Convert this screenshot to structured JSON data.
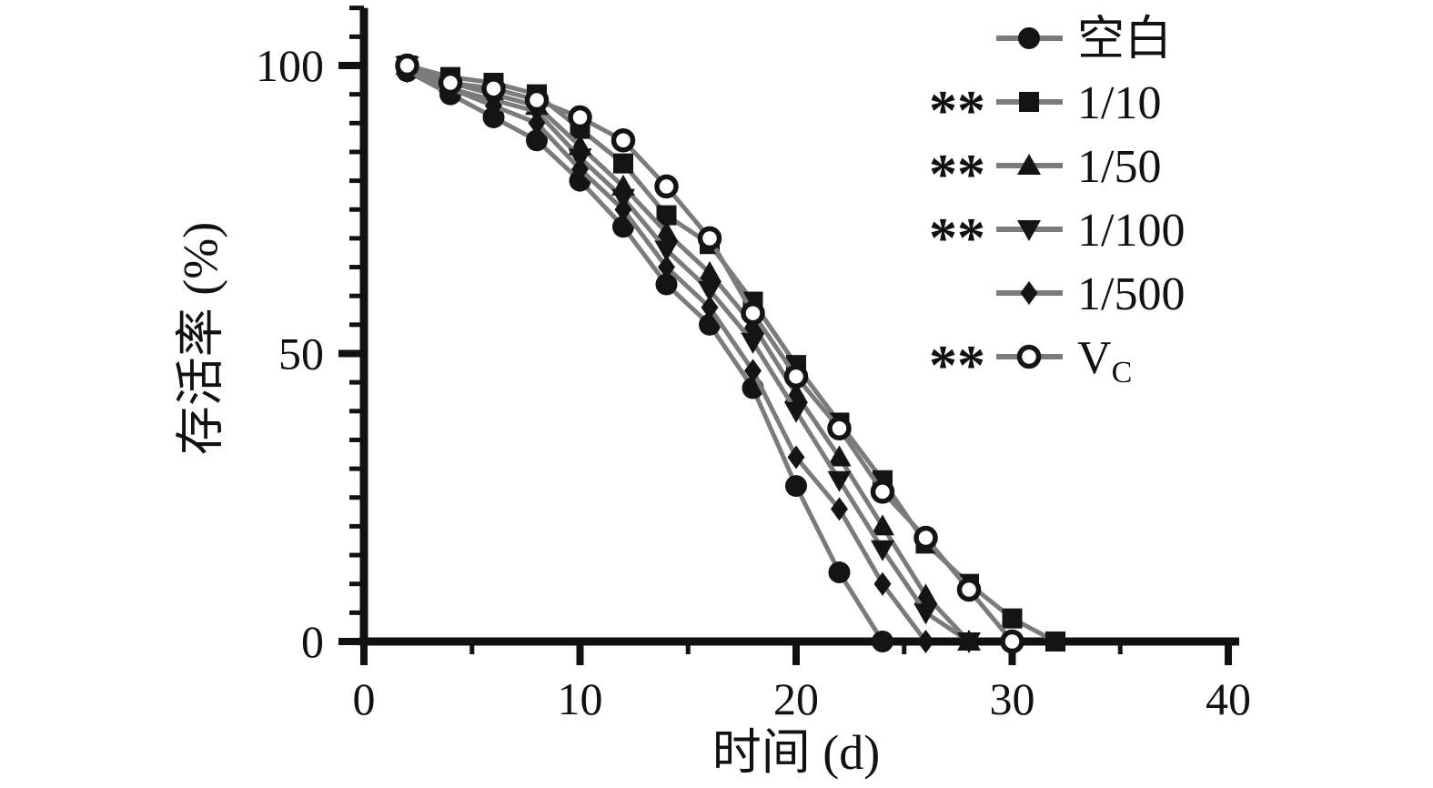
{
  "figure": {
    "background": "#ffffff",
    "axis_color": "#111111",
    "line_color": "#7b7b7b",
    "marker_color": "#141414"
  },
  "chart_data": {
    "type": "line",
    "title": "",
    "xlabel": "时间 (d)",
    "ylabel": "存活率 (%)",
    "xlim": [
      0,
      40
    ],
    "ylim": [
      0,
      110
    ],
    "x_major_ticks": [
      0,
      10,
      20,
      30,
      40
    ],
    "x_minor_step": 5,
    "y_major_ticks": [
      0,
      50,
      100
    ],
    "y_minor_step": 5,
    "grid": false,
    "legend_position": "upper-right",
    "series": [
      {
        "key": "blank",
        "label": "空白",
        "significance": "",
        "marker": "circle-filled",
        "x": [
          2,
          4,
          6,
          8,
          10,
          12,
          14,
          16,
          18,
          20,
          22,
          24
        ],
        "y": [
          99,
          95,
          91,
          87,
          80,
          72,
          62,
          55,
          44,
          27,
          12,
          0
        ]
      },
      {
        "key": "1-10",
        "label": "1/10",
        "significance": "**",
        "marker": "square-filled",
        "x": [
          2,
          4,
          6,
          8,
          10,
          12,
          14,
          16,
          18,
          20,
          22,
          24,
          26,
          28,
          30,
          32
        ],
        "y": [
          100,
          98,
          97,
          95,
          89,
          83,
          74,
          69,
          59,
          48,
          38,
          28,
          17,
          10,
          4,
          0
        ]
      },
      {
        "key": "1-50",
        "label": "1/50",
        "significance": "**",
        "marker": "triangle-up-filled",
        "x": [
          2,
          4,
          6,
          8,
          10,
          12,
          14,
          16,
          18,
          20,
          22,
          24,
          26,
          28
        ],
        "y": [
          100,
          97,
          95,
          93,
          86,
          79,
          71,
          64,
          55,
          43,
          32,
          20,
          8,
          0
        ]
      },
      {
        "key": "1-100",
        "label": "1/100",
        "significance": "**",
        "marker": "triangle-down-filled",
        "x": [
          2,
          4,
          6,
          8,
          10,
          12,
          14,
          16,
          18,
          20,
          22,
          24,
          26,
          28
        ],
        "y": [
          100,
          96,
          94,
          92,
          84,
          77,
          68,
          61,
          52,
          40,
          28,
          16,
          5,
          0
        ]
      },
      {
        "key": "1-500",
        "label": "1/500",
        "significance": "",
        "marker": "diamond-filled",
        "x": [
          2,
          4,
          6,
          8,
          10,
          12,
          14,
          16,
          18,
          20,
          22,
          24,
          26
        ],
        "y": [
          99,
          96,
          93,
          90,
          82,
          75,
          65,
          58,
          47,
          32,
          23,
          10,
          0
        ]
      },
      {
        "key": "vc",
        "label": "V",
        "label_sub": "C",
        "significance": "**",
        "marker": "circle-open",
        "x": [
          2,
          4,
          6,
          8,
          10,
          12,
          14,
          16,
          18,
          20,
          22,
          24,
          26,
          28,
          30
        ],
        "y": [
          100,
          97,
          96,
          94,
          91,
          87,
          79,
          70,
          57,
          46,
          37,
          26,
          18,
          9,
          0
        ]
      }
    ]
  }
}
